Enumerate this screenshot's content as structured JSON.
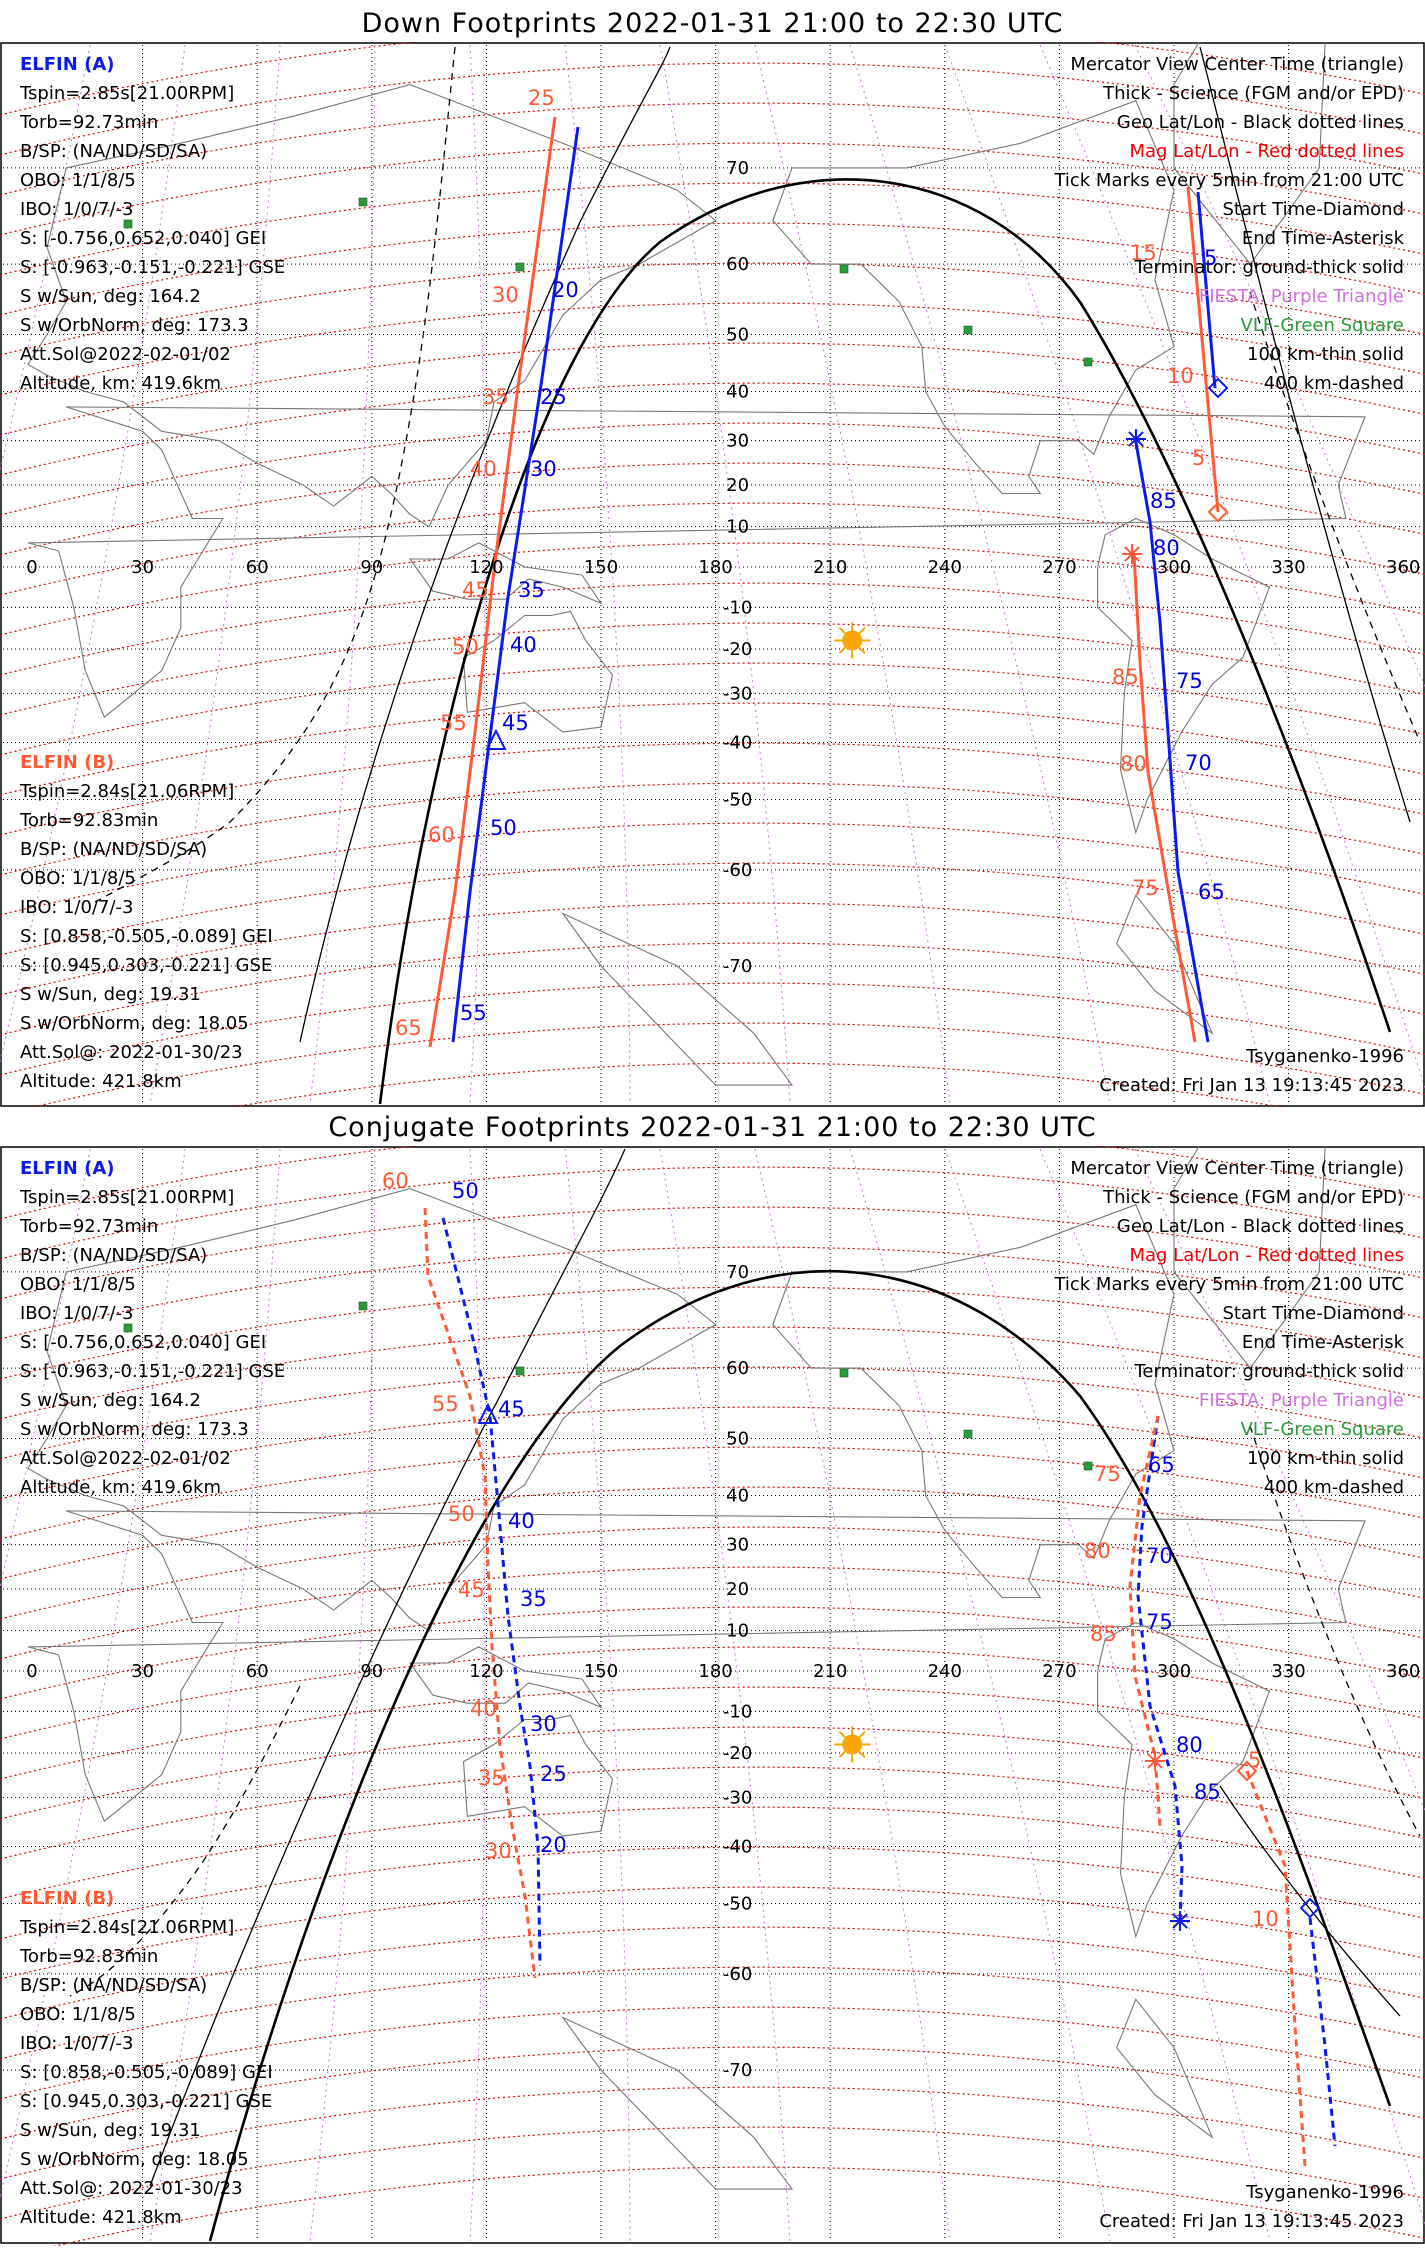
{
  "colors": {
    "elfin_a": "#0a1bea",
    "elfin_b": "#ff5a36",
    "mag_grid": "#dd0000",
    "geo_grid": "#000000",
    "terminator": "#000000",
    "sun": "#f7a500",
    "fiesta": "#d070e0",
    "vlf": "#2a9a3a",
    "coast": "#777777"
  },
  "common": {
    "legend": [
      {
        "text": "Mercator View Center Time (triangle)",
        "color": "#000000"
      },
      {
        "text": "Thick - Science (FGM and/or EPD)",
        "color": "#000000"
      },
      {
        "text": "Geo Lat/Lon - Black dotted lines",
        "color": "#000000"
      },
      {
        "text": "Mag Lat/Lon - Red dotted lines",
        "color": "#ee0000"
      },
      {
        "text": "Tick Marks every 5min from 21:00 UTC",
        "color": "#000000"
      },
      {
        "text": "Start Time-Diamond",
        "color": "#000000"
      },
      {
        "text": "End Time-Asterisk",
        "color": "#000000"
      },
      {
        "text": "Terminator: ground-thick solid",
        "color": "#000000"
      },
      {
        "text": "FIESTA: Purple Triangle",
        "color": "#d070e0"
      },
      {
        "text": "VLF-Green Square",
        "color": "#2a9a3a"
      },
      {
        "text": "100 km-thin solid",
        "color": "#000000"
      },
      {
        "text": "400 km-dashed",
        "color": "#000000"
      }
    ],
    "elfin_a": {
      "name": "ELFIN (A)",
      "lines": [
        "Tspin=2.85s[21.00RPM]",
        "Torb=92.73min",
        "B/SP: (NA/ND/SD/SA)",
        "OBO: 1/1/8/5",
        "IBO: 1/0/7/-3",
        "S: [-0.756,0.652,0.040] GEI",
        "S: [-0.963,-0.151,-0.221] GSE",
        "S w/Sun, deg: 164.2",
        "S w/OrbNorm, deg: 173.3",
        "Att.Sol@2022-02-01/02",
        "Altitude, km: 419.6km"
      ]
    },
    "elfin_b": {
      "name": "ELFIN (B)",
      "lines": [
        "Tspin=2.84s[21.06RPM]",
        "Torb=92.83min",
        "B/SP: (NA/ND/SD/SA)",
        "OBO: 1/1/8/5",
        "IBO: 1/0/7/-3",
        "S: [0.858,-0.505,-0.089] GEI",
        "S: [0.945,0.303,-0.221] GSE",
        "S w/Sun, deg: 19.31",
        "S w/OrbNorm, deg: 18.05",
        "Att.Sol@: 2022-01-30/23",
        "Altitude: 421.8km"
      ]
    },
    "model": "Tsyganenko-1996",
    "created": "Created: Fri Jan 13 19:13:45 2023",
    "lon_labels": [
      "0",
      "30",
      "60",
      "90",
      "120",
      "150",
      "180",
      "210",
      "240",
      "270",
      "300",
      "330",
      "360"
    ],
    "lat_labels": [
      "70",
      "60",
      "50",
      "40",
      "30",
      "20",
      "10",
      "-10",
      "-20",
      "-30",
      "-40",
      "-50",
      "-60",
      "-70"
    ]
  },
  "panels": [
    {
      "title": "Down Footprints 2022-01-31 21:00 to 22:30 UTC",
      "blue_labels": [
        "20",
        "25",
        "30",
        "35",
        "40",
        "45",
        "50",
        "55",
        "5",
        "85",
        "80",
        "75",
        "70",
        "65"
      ],
      "red_labels": [
        "25",
        "30",
        "35",
        "40",
        "45",
        "50",
        "55",
        "60",
        "65",
        "15",
        "10",
        "5",
        "85",
        "80",
        "75"
      ]
    },
    {
      "title": "Conjugate Footprints 2022-01-31 21:00 to 22:30 UTC",
      "blue_labels": [
        "50",
        "45",
        "40",
        "35",
        "30",
        "25",
        "20",
        "65",
        "70",
        "75",
        "80",
        "85"
      ],
      "red_labels": [
        "60",
        "55",
        "50",
        "45",
        "40",
        "35",
        "30",
        "75",
        "80",
        "85",
        "5",
        "10"
      ]
    }
  ]
}
